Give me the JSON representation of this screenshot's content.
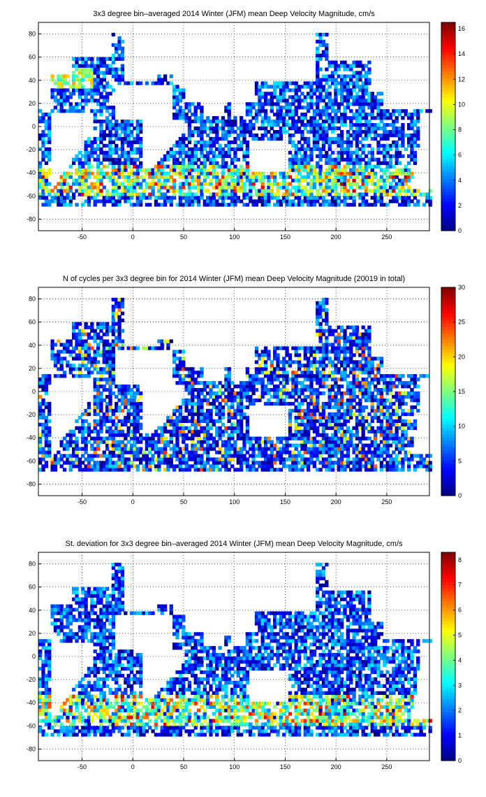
{
  "chart_data": [
    {
      "type": "heatmap",
      "title": "3x3 degree bin–averaged 2014 Winter (JFM) mean Deep Velocity Magnitude, cm/s",
      "xlabel": "",
      "ylabel": "",
      "x_range": [
        -93,
        292
      ],
      "y_range": [
        -90,
        90
      ],
      "x_ticks": [
        "-50",
        "0",
        "50",
        "100",
        "150",
        "200",
        "250"
      ],
      "y_ticks": [
        "80",
        "60",
        "40",
        "20",
        "0",
        "-20",
        "-40",
        "-60",
        "-80"
      ],
      "colorbar": {
        "min": 0,
        "max": 16.5,
        "ticks": [
          "0",
          "2",
          "4",
          "6",
          "8",
          "10",
          "12",
          "14",
          "16"
        ]
      },
      "grid": true,
      "colormap": "jet",
      "note_values": "dense 3x3 degree bins over ocean, elevated (10-16) values in Southern Ocean band near 40-50S and Gulf Stream"
    },
    {
      "type": "heatmap",
      "title": "N of cycles per 3x3 degree bin for 2014 Winter (JFM) mean Deep Velocity Magnitude (20019 in total)",
      "xlabel": "",
      "ylabel": "",
      "x_range": [
        -93,
        292
      ],
      "y_range": [
        -90,
        90
      ],
      "x_ticks": [
        "-50",
        "0",
        "50",
        "100",
        "150",
        "200",
        "250"
      ],
      "y_ticks": [
        "80",
        "60",
        "40",
        "20",
        "0",
        "-20",
        "-40",
        "-60",
        "-80"
      ],
      "colorbar": {
        "min": 0,
        "max": 30,
        "ticks": [
          "0",
          "5",
          "10",
          "15",
          "20",
          "25",
          "30"
        ]
      },
      "grid": true,
      "colormap": "jet"
    },
    {
      "type": "heatmap",
      "title": "St. deviation for 3x3 degree bin–averaged 2014 Winter (JFM) mean Deep Velocity Magnitude, cm/s",
      "xlabel": "",
      "ylabel": "",
      "x_range": [
        -93,
        292
      ],
      "y_range": [
        -90,
        90
      ],
      "x_ticks": [
        "-50",
        "0",
        "50",
        "100",
        "150",
        "200",
        "250"
      ],
      "y_ticks": [
        "80",
        "60",
        "40",
        "20",
        "0",
        "-20",
        "-40",
        "-60",
        "-80"
      ],
      "colorbar": {
        "min": 0,
        "max": 8.3,
        "ticks": [
          "0",
          "1",
          "2",
          "3",
          "4",
          "5",
          "6",
          "7",
          "8"
        ]
      },
      "grid": true,
      "colormap": "jet"
    }
  ]
}
